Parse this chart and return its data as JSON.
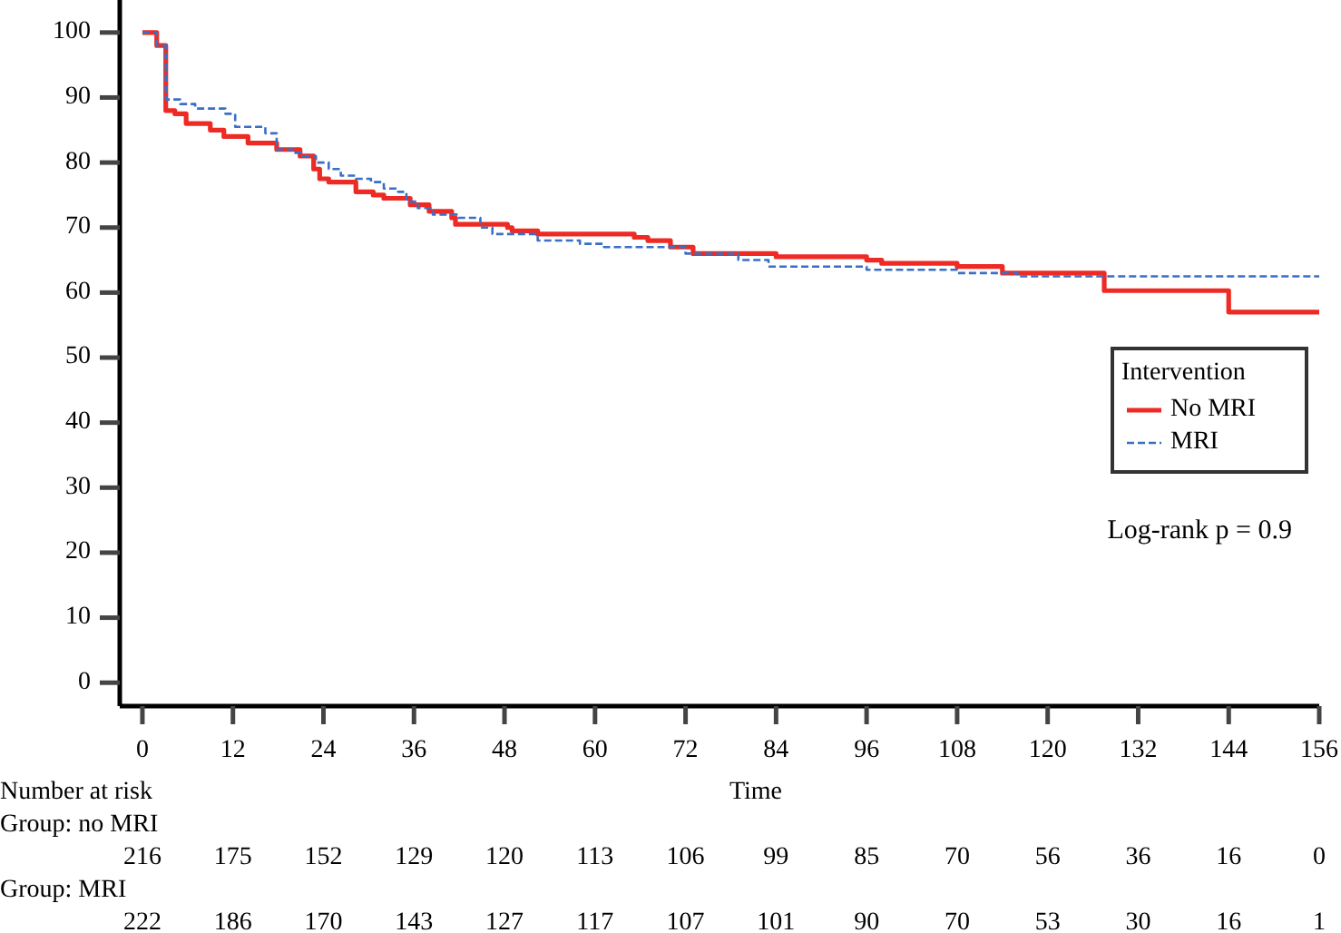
{
  "chart_data": {
    "type": "step",
    "xlabel": "Time",
    "legend_title": "Intervention",
    "legend": "right",
    "grid": false,
    "xlim": [
      -3,
      156
    ],
    "ylim": [
      -3.6,
      105
    ],
    "xticks": [
      0,
      12,
      24,
      36,
      48,
      60,
      72,
      84,
      96,
      108,
      120,
      132,
      144,
      156
    ],
    "yticks": [
      0,
      10,
      20,
      30,
      40,
      50,
      60,
      70,
      80,
      90,
      100
    ],
    "series": [
      {
        "name": "No MRI",
        "color": "#ee2a24",
        "line_style": "solid",
        "x": [
          0,
          1.9,
          3.1,
          4.3,
          5.8,
          9,
          10.8,
          14,
          17.8,
          20.9,
          22.7,
          23.5,
          24.7,
          28.3,
          30.6,
          32,
          35.5,
          38,
          41,
          41.5,
          48.4,
          49,
          52.4,
          65.2,
          67,
          70,
          73,
          84,
          96,
          98,
          108,
          114,
          127.5,
          144,
          156
        ],
        "values": [
          100,
          98,
          88,
          87.5,
          86,
          85,
          84,
          83,
          82,
          81,
          79,
          77.5,
          77,
          75.5,
          75,
          74.5,
          73.5,
          72.5,
          71.5,
          70.5,
          70,
          69.5,
          69,
          68.5,
          68,
          67,
          66,
          65.5,
          65,
          64.5,
          64,
          63,
          60.3,
          57,
          57
        ]
      },
      {
        "name": "MRI",
        "color": "#3a6fc4",
        "line_style": "dashed",
        "x": [
          0,
          1.9,
          3.1,
          5,
          7,
          11,
          12.3,
          16.3,
          17.8,
          20,
          21,
          23,
          24.7,
          26.3,
          28.3,
          30.3,
          32,
          33.9,
          35,
          36.5,
          38.5,
          41.9,
          44.8,
          46.4,
          52.4,
          58,
          61.2,
          72,
          79,
          83,
          96,
          108,
          116,
          156
        ],
        "values": [
          100,
          98,
          89.7,
          89,
          88.3,
          87.5,
          85.5,
          84.5,
          82,
          81.5,
          81,
          80,
          79,
          78,
          77.5,
          77,
          76,
          75.5,
          74,
          73,
          72,
          71.5,
          70,
          69,
          68,
          67.5,
          67,
          66,
          65,
          64,
          63.5,
          63,
          62.5,
          62.5
        ]
      }
    ],
    "annotations": [
      "Log-rank p = 0.9",
      "Number at risk",
      "Group: no MRI",
      "216",
      "175",
      "152",
      "129",
      "120",
      "113",
      "106",
      "99",
      "85",
      "70",
      "56",
      "36",
      "16",
      "0",
      "Group: MRI",
      "222",
      "186",
      "170",
      "143",
      "127",
      "117",
      "107",
      "101",
      "90",
      "70",
      "53",
      "30",
      "16",
      "1"
    ]
  }
}
